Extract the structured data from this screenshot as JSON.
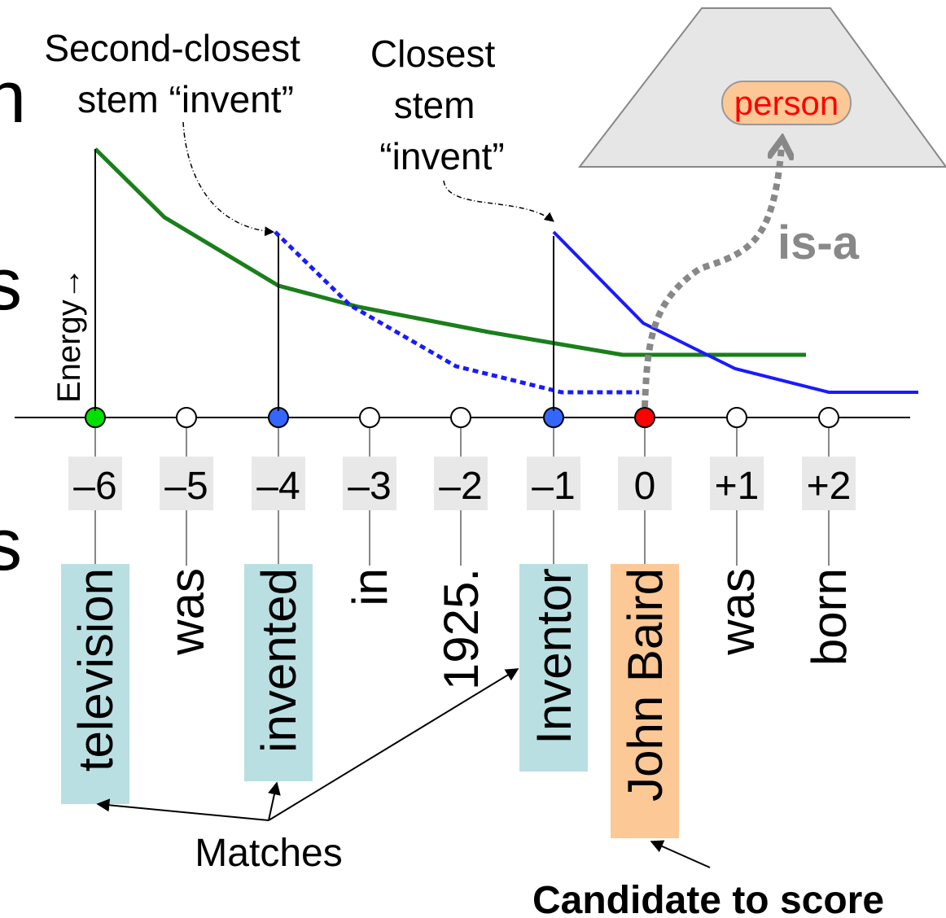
{
  "edge_fragments": [
    "n",
    "s",
    "s"
  ],
  "annotations": {
    "second_closest": [
      "Second-closest",
      "stem “invent”"
    ],
    "closest": [
      "Closest",
      "stem",
      "“invent”"
    ],
    "energy": "Energy→",
    "person": "person",
    "is_a": "is-a",
    "matches": "Matches",
    "candidate": "Candidate to score"
  },
  "positions": [
    {
      "offset": "–6",
      "word": "television",
      "dot": "#00e000",
      "highlight": "#b9dfe2"
    },
    {
      "offset": "–5",
      "word": "was",
      "dot": "#ffffff",
      "highlight": null
    },
    {
      "offset": "–4",
      "word": "invented",
      "dot": "#3366ff",
      "highlight": "#b9dfe2"
    },
    {
      "offset": "–3",
      "word": "in",
      "dot": "#ffffff",
      "highlight": null
    },
    {
      "offset": "–2",
      "word": "1925.",
      "dot": "#ffffff",
      "highlight": null
    },
    {
      "offset": "–1",
      "word": "Inventor",
      "dot": "#3366ff",
      "highlight": "#b9dfe2"
    },
    {
      "offset": "0",
      "word": "John Baird",
      "dot": "#ff0000",
      "highlight": "#fcc896"
    },
    {
      "offset": "+1",
      "word": "was",
      "dot": "#ffffff",
      "highlight": null
    },
    {
      "offset": "+2",
      "word": "born",
      "dot": "#ffffff",
      "highlight": null
    }
  ]
}
